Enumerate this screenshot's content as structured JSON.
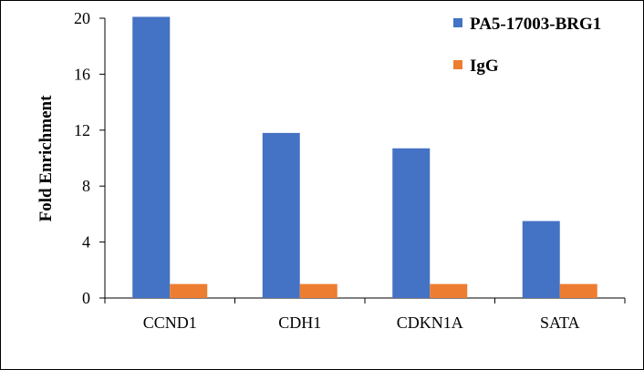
{
  "chart_data": {
    "type": "bar",
    "title": "",
    "xlabel": "",
    "ylabel": "Fold Enrichment",
    "ylim": [
      0,
      20
    ],
    "yticks": [
      0,
      4,
      8,
      12,
      16,
      20
    ],
    "categories": [
      "CCND1",
      "CDH1",
      "CDKN1A",
      "SATA"
    ],
    "series": [
      {
        "name": "PA5-17003-BRG1",
        "color": "#4472C4",
        "values": [
          20.1,
          11.8,
          10.7,
          5.5
        ]
      },
      {
        "name": "IgG",
        "color": "#ED7D31",
        "values": [
          1.0,
          1.0,
          1.0,
          1.0
        ]
      }
    ],
    "grid": false,
    "legend": "top-right"
  }
}
